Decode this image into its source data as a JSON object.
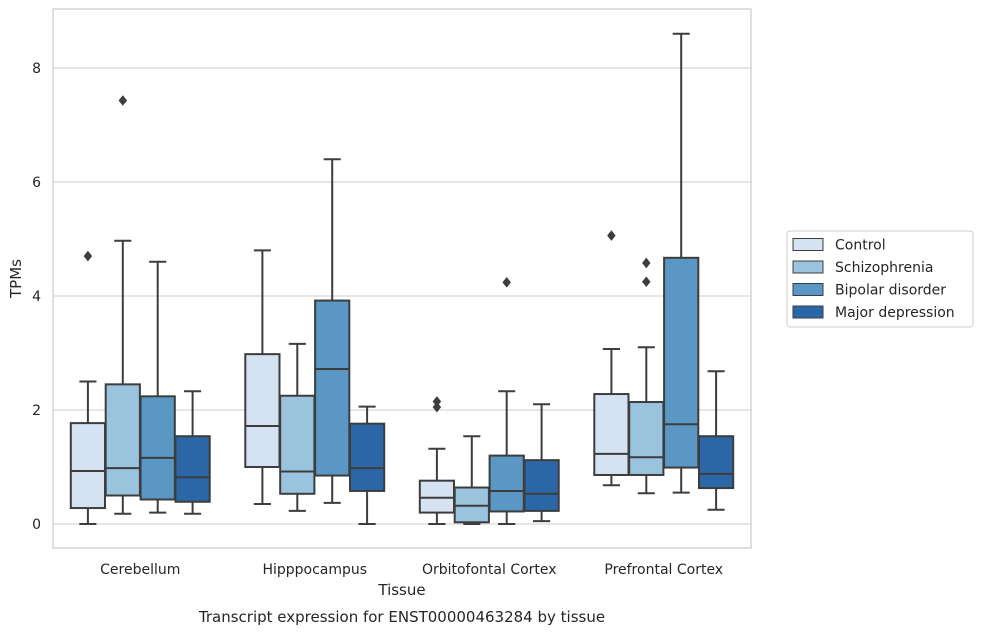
{
  "caption": "Transcript expression for ENST00000463284 by tissue",
  "chart_data": {
    "type": "box",
    "xlabel": "Tissue",
    "ylabel": "TPMs",
    "ylim": [
      -0.42,
      9.0
    ],
    "yticks": [
      0,
      2,
      4,
      6,
      8
    ],
    "grid": "horizontal",
    "legend_position": "right",
    "categories": [
      "Cerebellum",
      "Hipppocampus",
      "Orbitofontal Cortex",
      "Prefrontal Cortex"
    ],
    "series": [
      {
        "name": "Control",
        "color": "#d4e2f2",
        "boxes": [
          {
            "whislo": 0.0,
            "q1": 0.28,
            "med": 0.93,
            "q3": 1.77,
            "whishi": 2.5,
            "fliers": [
              4.7
            ]
          },
          {
            "whislo": 0.35,
            "q1": 1.0,
            "med": 1.72,
            "q3": 2.98,
            "whishi": 4.8,
            "fliers": []
          },
          {
            "whislo": 0.0,
            "q1": 0.2,
            "med": 0.46,
            "q3": 0.76,
            "whishi": 1.32,
            "fliers": [
              2.05,
              2.15
            ]
          },
          {
            "whislo": 0.68,
            "q1": 0.86,
            "med": 1.23,
            "q3": 2.28,
            "whishi": 3.07,
            "fliers": [
              5.06
            ]
          }
        ]
      },
      {
        "name": "Schizophrenia",
        "color": "#9ac3de",
        "boxes": [
          {
            "whislo": 0.18,
            "q1": 0.5,
            "med": 0.98,
            "q3": 2.45,
            "whishi": 4.97,
            "fliers": [
              7.43
            ]
          },
          {
            "whislo": 0.23,
            "q1": 0.53,
            "med": 0.92,
            "q3": 2.25,
            "whishi": 3.16,
            "fliers": []
          },
          {
            "whislo": 0.0,
            "q1": 0.03,
            "med": 0.32,
            "q3": 0.64,
            "whishi": 1.54,
            "fliers": []
          },
          {
            "whislo": 0.54,
            "q1": 0.86,
            "med": 1.17,
            "q3": 2.14,
            "whishi": 3.1,
            "fliers": [
              4.25,
              4.58
            ]
          }
        ]
      },
      {
        "name": "Bipolar disorder",
        "color": "#5a97c4",
        "boxes": [
          {
            "whislo": 0.2,
            "q1": 0.43,
            "med": 1.16,
            "q3": 2.24,
            "whishi": 4.6,
            "fliers": []
          },
          {
            "whislo": 0.37,
            "q1": 0.85,
            "med": 2.72,
            "q3": 3.92,
            "whishi": 6.4,
            "fliers": []
          },
          {
            "whislo": 0.0,
            "q1": 0.22,
            "med": 0.58,
            "q3": 1.2,
            "whishi": 2.33,
            "fliers": [
              4.24
            ]
          },
          {
            "whislo": 0.55,
            "q1": 0.99,
            "med": 1.75,
            "q3": 4.67,
            "whishi": 8.6,
            "fliers": []
          }
        ]
      },
      {
        "name": "Major depression",
        "color": "#2b66a6",
        "boxes": [
          {
            "whislo": 0.18,
            "q1": 0.39,
            "med": 0.82,
            "q3": 1.54,
            "whishi": 2.33,
            "fliers": []
          },
          {
            "whislo": 0.0,
            "q1": 0.58,
            "med": 0.98,
            "q3": 1.76,
            "whishi": 2.06,
            "fliers": []
          },
          {
            "whislo": 0.05,
            "q1": 0.23,
            "med": 0.53,
            "q3": 1.12,
            "whishi": 2.1,
            "fliers": []
          },
          {
            "whislo": 0.25,
            "q1": 0.63,
            "med": 0.88,
            "q3": 1.54,
            "whishi": 2.68,
            "fliers": []
          }
        ]
      }
    ]
  }
}
